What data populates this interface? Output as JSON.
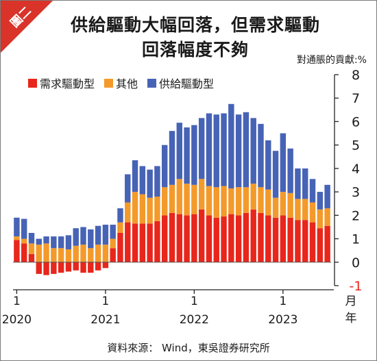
{
  "badge": "圖二",
  "title_line1": "供給驅動大幅回落，但需求驅動",
  "title_line2": "回落幅度不夠",
  "unit_label": "對通脹的貢獻:%",
  "source": "資料來源： Wind，東吳證券研究所",
  "colors": {
    "demand": "#e8261c",
    "other": "#f39a2b",
    "supply": "#4763b5",
    "badge": "#d9332a"
  },
  "chart_data": {
    "type": "bar",
    "stacked": true,
    "x_tick_labels": [
      "1",
      "1",
      "1",
      "1"
    ],
    "x_tick_years": [
      "2020",
      "2021",
      "2022",
      "2023"
    ],
    "x_tick_index": [
      0,
      12,
      24,
      36
    ],
    "x_axis_label": "月\n年",
    "ylim": [
      -1,
      8
    ],
    "yticks": [
      -1,
      0,
      1,
      2,
      3,
      4,
      5,
      6,
      7,
      8
    ],
    "legend_position": "top-left",
    "series": [
      {
        "name": "需求驅動型",
        "key": "demand",
        "values": [
          0.95,
          0.8,
          0.35,
          -0.5,
          -0.55,
          -0.5,
          -0.45,
          -0.4,
          -0.35,
          -0.45,
          -0.45,
          -0.35,
          -0.25,
          0.6,
          1.25,
          1.7,
          1.65,
          1.65,
          1.65,
          1.75,
          2.0,
          2.1,
          2.05,
          2.0,
          2.05,
          2.25,
          2.0,
          1.9,
          1.95,
          2.05,
          2.0,
          2.1,
          2.25,
          2.1,
          2.0,
          1.9,
          2.0,
          1.9,
          1.8,
          1.8,
          1.7,
          1.45,
          1.55
        ]
      },
      {
        "name": "其他",
        "key": "other",
        "values": [
          0.15,
          0.2,
          0.45,
          0.75,
          0.8,
          0.6,
          0.6,
          0.55,
          0.7,
          0.75,
          0.6,
          0.75,
          0.75,
          0.4,
          0.45,
          0.85,
          1.35,
          1.25,
          1.1,
          1.05,
          1.2,
          1.2,
          1.5,
          1.35,
          1.25,
          1.3,
          1.25,
          1.3,
          1.3,
          1.1,
          1.2,
          1.1,
          1.1,
          1.1,
          1.1,
          0.85,
          1.0,
          1.05,
          0.9,
          0.9,
          0.85,
          0.8,
          0.75
        ]
      },
      {
        "name": "供給驅動型",
        "key": "supply",
        "values": [
          0.8,
          0.85,
          0.45,
          0.25,
          0.3,
          0.5,
          0.5,
          0.6,
          0.75,
          0.75,
          0.8,
          0.8,
          0.85,
          0.6,
          0.6,
          1.2,
          1.35,
          1.2,
          1.2,
          1.3,
          1.8,
          2.3,
          2.4,
          2.4,
          2.55,
          2.6,
          3.1,
          3.1,
          3.1,
          3.6,
          3.1,
          3.2,
          2.8,
          2.7,
          2.1,
          2.0,
          2.5,
          1.9,
          1.3,
          1.3,
          1.0,
          0.75,
          1.0
        ]
      }
    ]
  }
}
